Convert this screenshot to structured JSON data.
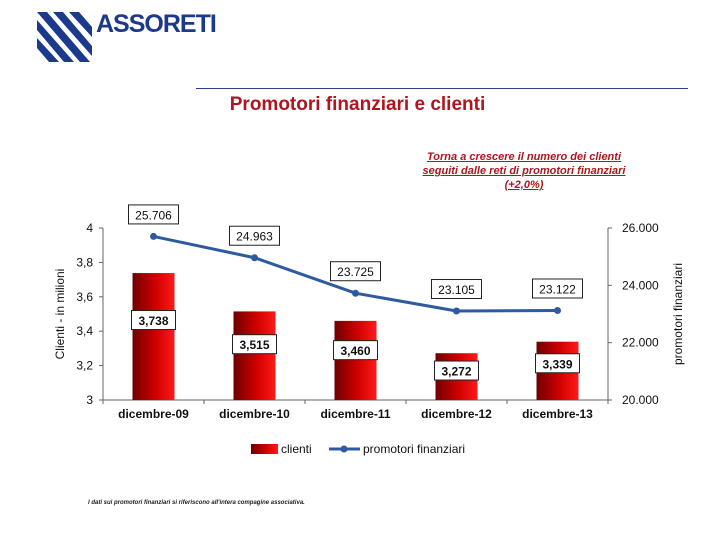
{
  "logo": {
    "text": "ASSORETI"
  },
  "title": "Promotori finanziari e clienti",
  "annotation": "Torna a crescere il numero dei clienti seguiti dalle reti di promotori finanziari (+2,0%)",
  "footnote": "I dati sui promotori finanziari si riferiscono all'intera compagine associativa.",
  "colors": {
    "bar": "#c00000",
    "line": "#2e5aa0",
    "title": "#b0141e"
  },
  "chart_data": {
    "type": "bar",
    "categories": [
      "dicembre-09",
      "dicembre-10",
      "dicembre-11",
      "dicembre-12",
      "dicembre-13"
    ],
    "series": [
      {
        "name": "clienti",
        "type": "bar",
        "axis": "left",
        "values": [
          3.738,
          3.515,
          3.46,
          3.272,
          3.339
        ],
        "labels": [
          "3,738",
          "3,515",
          "3,460",
          "3,272",
          "3,339"
        ]
      },
      {
        "name": "promotori finanziari",
        "type": "line",
        "axis": "right",
        "values": [
          25706,
          24963,
          23725,
          23105,
          23122
        ],
        "labels": [
          "25.706",
          "24.963",
          "23.725",
          "23.105",
          "23.122"
        ]
      }
    ],
    "ylabel": "Clienti - in milioni",
    "y2label": "promotori finanziari",
    "ylim": [
      3,
      4
    ],
    "yticks": [
      "3",
      "3,2",
      "3,4",
      "3,6",
      "3,8",
      "4"
    ],
    "y2lim": [
      20000,
      26000
    ],
    "y2ticks": [
      "20.000",
      "22.000",
      "24.000",
      "26.000"
    ],
    "legend": "bottom",
    "grid": false
  }
}
